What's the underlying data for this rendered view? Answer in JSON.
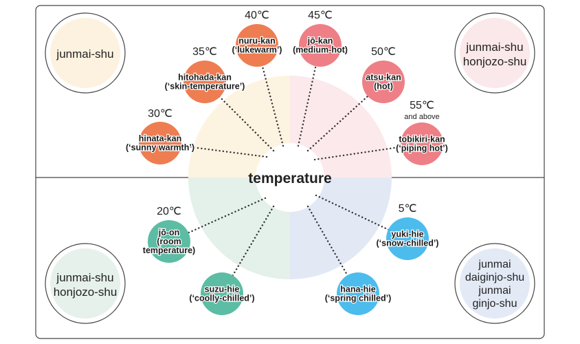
{
  "center": {
    "label": "temperature"
  },
  "sake_types": {
    "top_left": {
      "lines": [
        "junmai-shu"
      ],
      "fill": "#fdf2e0"
    },
    "top_right": {
      "lines": [
        "junmai-shu",
        "honjozo-shu"
      ],
      "fill": "#fbe8ea"
    },
    "bottom_left": {
      "lines": [
        "junmai-shu",
        "honjozo-shu"
      ],
      "fill": "#e6f1ec"
    },
    "bottom_right": {
      "lines": [
        "junmai",
        "daiginjo-shu",
        "junmai",
        "ginjo-shu"
      ],
      "fill": "#e3eaf6"
    }
  },
  "quadrant_colors": {
    "top_left": "#fdf3e1",
    "top_right": "#fce9ec",
    "bottom_left": "#e4f0ea",
    "bottom_right": "#e2e9f5"
  },
  "temperatures": [
    {
      "id": "hinata-kan",
      "temp": "30℃",
      "note": "",
      "name": "hinata-kan",
      "english": "(‘sunny warmth’)",
      "color": "#ee7d52"
    },
    {
      "id": "hitohada-kan",
      "temp": "35℃",
      "note": "",
      "name": "hitohada-kan",
      "english": "(‘skin-temperature’)",
      "color": "#ee7d52"
    },
    {
      "id": "nuru-kan",
      "temp": "40℃",
      "note": "",
      "name": "nuru-kan",
      "english": "(‘lukewarm’)",
      "color": "#ee7d52"
    },
    {
      "id": "jo-kan",
      "temp": "45℃",
      "note": "",
      "name": "jō-kan",
      "english": "(medium-hot)",
      "color": "#ee7f86"
    },
    {
      "id": "atsu-kan",
      "temp": "50℃",
      "note": "",
      "name": "atsu-kan",
      "english": "(hot)",
      "color": "#ee7f86"
    },
    {
      "id": "tobikiri-kan",
      "temp": "55℃",
      "note": "and above",
      "name": "tobikiri-kan",
      "english": "(‘piping hot’)",
      "color": "#ee7f86"
    },
    {
      "id": "jo-on",
      "temp": "20℃",
      "note": "",
      "name": "jō-on",
      "english": "(room",
      "english2": "temperature)",
      "color": "#5cbda4"
    },
    {
      "id": "suzu-hie",
      "temp": "",
      "note": "",
      "name": "suzu-hie",
      "english": "(‘coolly-chilled’)",
      "color": "#5cbda4"
    },
    {
      "id": "hana-hie",
      "temp": "",
      "note": "",
      "name": "hana-hie",
      "english": "(‘spring chilled’)",
      "color": "#4cbcec"
    },
    {
      "id": "yuki-hie",
      "temp": "5℃",
      "note": "",
      "name": "yuki-hie",
      "english": "(‘snow-chilled’)",
      "color": "#4cbcec"
    }
  ]
}
